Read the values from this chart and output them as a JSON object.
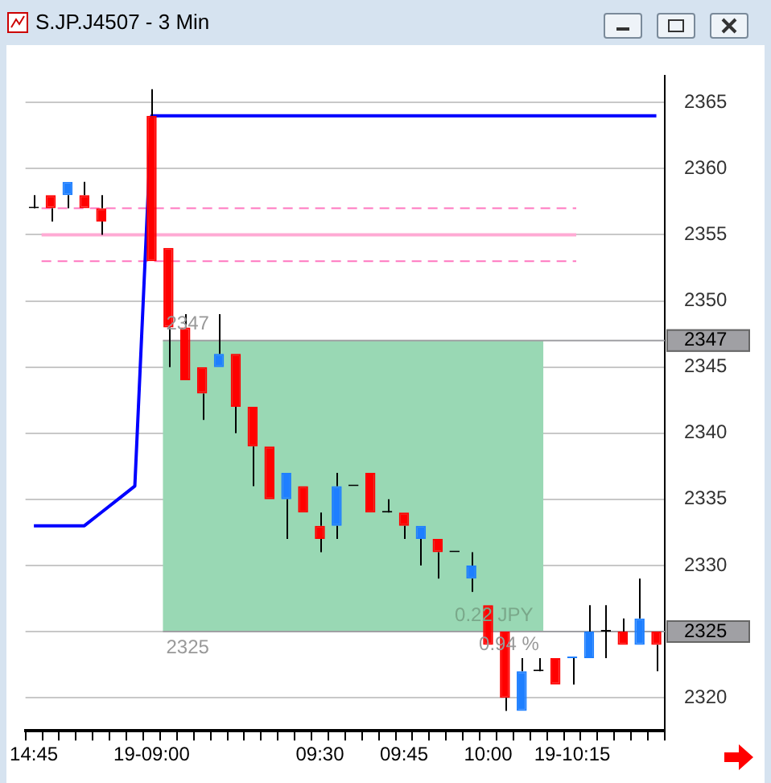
{
  "chart_data": {
    "type": "candlestick",
    "title": "S.JP.J4507 - 3 Min",
    "categories": [
      "14:45",
      null,
      null,
      null,
      null,
      null,
      null,
      "19-09:00",
      null,
      null,
      null,
      null,
      null,
      null,
      null,
      null,
      null,
      "09:30",
      null,
      null,
      null,
      null,
      "09:45",
      null,
      null,
      null,
      null,
      "10:00",
      null,
      null,
      null,
      null,
      "19-10:15",
      null,
      null,
      null,
      null,
      null
    ],
    "ohlc": [
      [
        2357,
        2358,
        2357,
        2357
      ],
      [
        2358,
        2358,
        2356,
        2357
      ],
      [
        2358,
        2359,
        2357,
        2359
      ],
      [
        2358,
        2359,
        2357,
        2357
      ],
      [
        2357,
        2358,
        2355,
        2356
      ],
      null,
      null,
      [
        2364,
        2366,
        2353,
        2353
      ],
      [
        2354,
        2354,
        2345,
        2348
      ],
      [
        2348,
        2349,
        2344,
        2344
      ],
      [
        2345,
        2345,
        2341,
        2343
      ],
      [
        2345,
        2349,
        2345,
        2346
      ],
      [
        2346,
        2346,
        2340,
        2342
      ],
      [
        2342,
        2342,
        2336,
        2339
      ],
      [
        2339,
        2339,
        2335,
        2335
      ],
      [
        2335,
        2337,
        2332,
        2337
      ],
      [
        2336,
        2336,
        2334,
        2334
      ],
      [
        2333,
        2334,
        2331,
        2332
      ],
      [
        2333,
        2337,
        2332,
        2336
      ],
      [
        2336,
        2336,
        2336,
        2336
      ],
      [
        2337,
        2337,
        2334,
        2334
      ],
      [
        2334,
        2335,
        2334,
        2334
      ],
      [
        2334,
        2334,
        2332,
        2333
      ],
      [
        2332,
        2333,
        2330,
        2333
      ],
      [
        2332,
        2332,
        2329,
        2331
      ],
      [
        2331,
        2331,
        2331,
        2331
      ],
      [
        2329,
        2331,
        2328,
        2330
      ],
      [
        2327,
        2327,
        2324,
        2324
      ],
      [
        2325,
        2325,
        2319,
        2320
      ],
      [
        2319,
        2323,
        2319,
        2322
      ],
      [
        2322,
        2323,
        2322,
        2322
      ],
      [
        2323,
        2323,
        2321,
        2321
      ],
      [
        2323,
        2323,
        2321,
        2323
      ],
      [
        2323,
        2327,
        2323,
        2325
      ],
      [
        2325,
        2327,
        2323,
        2325
      ],
      [
        2325,
        2326,
        2324,
        2324
      ],
      [
        2324,
        2329,
        2324,
        2326
      ],
      [
        2325,
        2325,
        2322,
        2324
      ]
    ],
    "colors": [
      "#000000",
      "#ff0000",
      "#1e7fff",
      "#ff0000",
      "#ff0000",
      null,
      null,
      "#ff0000",
      "#ff0000",
      "#ff0000",
      "#ff0000",
      "#1e7fff",
      "#ff0000",
      "#ff0000",
      "#ff0000",
      "#1e7fff",
      "#ff0000",
      "#ff0000",
      "#1e7fff",
      "#000000",
      "#ff0000",
      "#000000",
      "#ff0000",
      "#1e7fff",
      "#ff0000",
      "#000000",
      "#1e7fff",
      "#ff0000",
      "#ff0000",
      "#1e7fff",
      "#000000",
      "#ff0000",
      "#1e7fff",
      "#1e7fff",
      "#000000",
      "#ff0000",
      "#1e7fff",
      "#ff0000"
    ],
    "series": [
      {
        "type": "line",
        "color": "#0000ff",
        "values": [
          2333,
          2333,
          2333,
          2333,
          2334,
          2335,
          2336,
          2364,
          2364,
          2364,
          2364,
          2364,
          2364,
          2364,
          2364,
          2364,
          2364,
          2364,
          2364,
          2364,
          2364,
          2364,
          2364,
          2364,
          2364,
          2364,
          2364,
          2364,
          2364,
          2364,
          2364,
          2364,
          2364,
          2364,
          2364,
          2364,
          2364,
          2364
        ]
      }
    ],
    "ylim": [
      2317.5,
      2367
    ],
    "yticks": [
      2320,
      2325,
      2330,
      2335,
      2340,
      2345,
      2350,
      2355,
      2360,
      2365
    ],
    "ref_lines": [
      {
        "axis": "y",
        "value": 2357,
        "color": "#ff77c0",
        "line_style": "dashed"
      },
      {
        "axis": "y",
        "value": 2355,
        "color": "#ffaad4",
        "line_style": "solid"
      },
      {
        "axis": "y",
        "value": 2353,
        "color": "#ff77c0",
        "line_style": "dashed"
      },
      {
        "axis": "y",
        "value": 2347,
        "label": "2347",
        "color": "#a0a0a4",
        "line_style": "solid"
      },
      {
        "axis": "y",
        "value": 2325,
        "label": "2325",
        "color": "#a0a0a4",
        "line_style": "solid"
      }
    ],
    "bands": [
      {
        "axis": "y",
        "from": 2325,
        "to": 2347,
        "color": "#99d8b4"
      }
    ],
    "annotations": [
      "2347",
      "2325",
      "0.22 JPY",
      "0.94 %"
    ],
    "grid": true,
    "legend": false
  }
}
